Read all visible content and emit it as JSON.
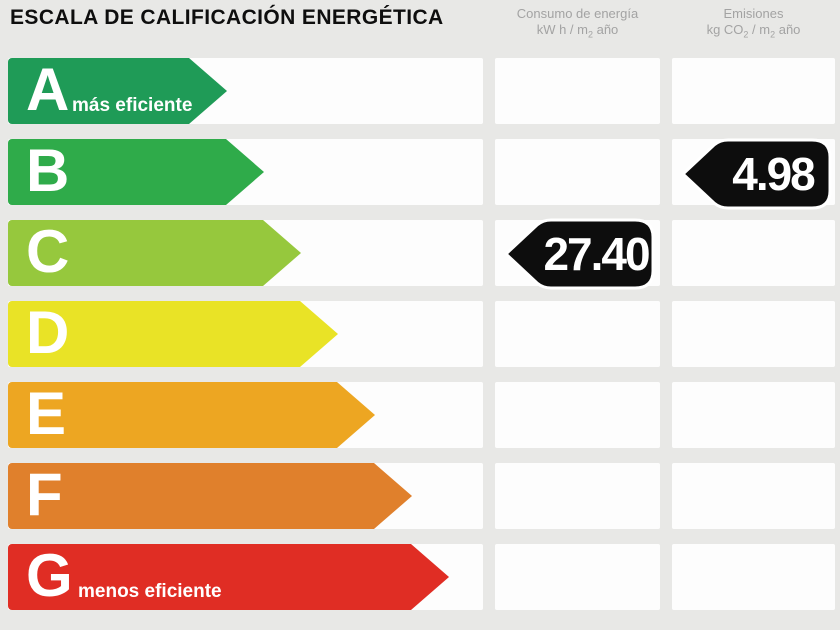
{
  "title": "ESCALA DE CALIFICACIÓN ENERGÉTICA",
  "background_color": "#e8e8e6",
  "columns": {
    "consumo": {
      "line1": "Consumo de energía",
      "line2_a": "kW h / m",
      "line2_sub": "2",
      "line2_b": " año"
    },
    "emisiones": {
      "line1": "Emisiones",
      "line2_a": "kg CO",
      "line2_sub1": "2",
      "line2_b": " / m",
      "line2_sub2": "2",
      "line2_c": " año"
    }
  },
  "rows": [
    {
      "letter": "A",
      "note": "más eficiente",
      "color": "#1f9b57",
      "arrow_width": 219
    },
    {
      "letter": "B",
      "note": "",
      "color": "#2fab4a",
      "arrow_width": 256
    },
    {
      "letter": "C",
      "note": "",
      "color": "#96c83d",
      "arrow_width": 293
    },
    {
      "letter": "D",
      "note": "",
      "color": "#e9e326",
      "arrow_width": 330
    },
    {
      "letter": "E",
      "note": "",
      "color": "#eda622",
      "arrow_width": 367
    },
    {
      "letter": "F",
      "note": "",
      "color": "#e0802c",
      "arrow_width": 404
    },
    {
      "letter": "G",
      "note": "menos eficiente",
      "color": "#e02d24",
      "arrow_width": 441
    }
  ],
  "badges": {
    "consumo": {
      "value": "27.40",
      "rating_row": "C",
      "color": "#0d0d0d"
    },
    "emisiones": {
      "value": "4.98",
      "rating_row": "B",
      "color": "#0d0d0d"
    }
  },
  "chart_data": {
    "type": "bar",
    "title": "ESCALA DE CALIFICACIÓN ENERGÉTICA",
    "categories": [
      "A",
      "B",
      "C",
      "D",
      "E",
      "F",
      "G"
    ],
    "values": [
      219,
      256,
      293,
      330,
      367,
      404,
      441
    ],
    "bar_colors": [
      "#1f9b57",
      "#2fab4a",
      "#96c83d",
      "#e9e326",
      "#eda622",
      "#e0802c",
      "#e02d24"
    ],
    "orientation": "horizontal",
    "notes": {
      "A": "más eficiente",
      "G": "menos eficiente"
    },
    "columns": [
      "Consumo de energía kW h / m2 año",
      "Emisiones kg CO2 / m2 año"
    ],
    "annotations": [
      {
        "column": "Consumo de energía kW h / m2 año",
        "rating": "C",
        "value": 27.4
      },
      {
        "column": "Emisiones kg CO2 / m2 año",
        "rating": "B",
        "value": 4.98
      }
    ],
    "legend_position": "none",
    "grid": false
  }
}
